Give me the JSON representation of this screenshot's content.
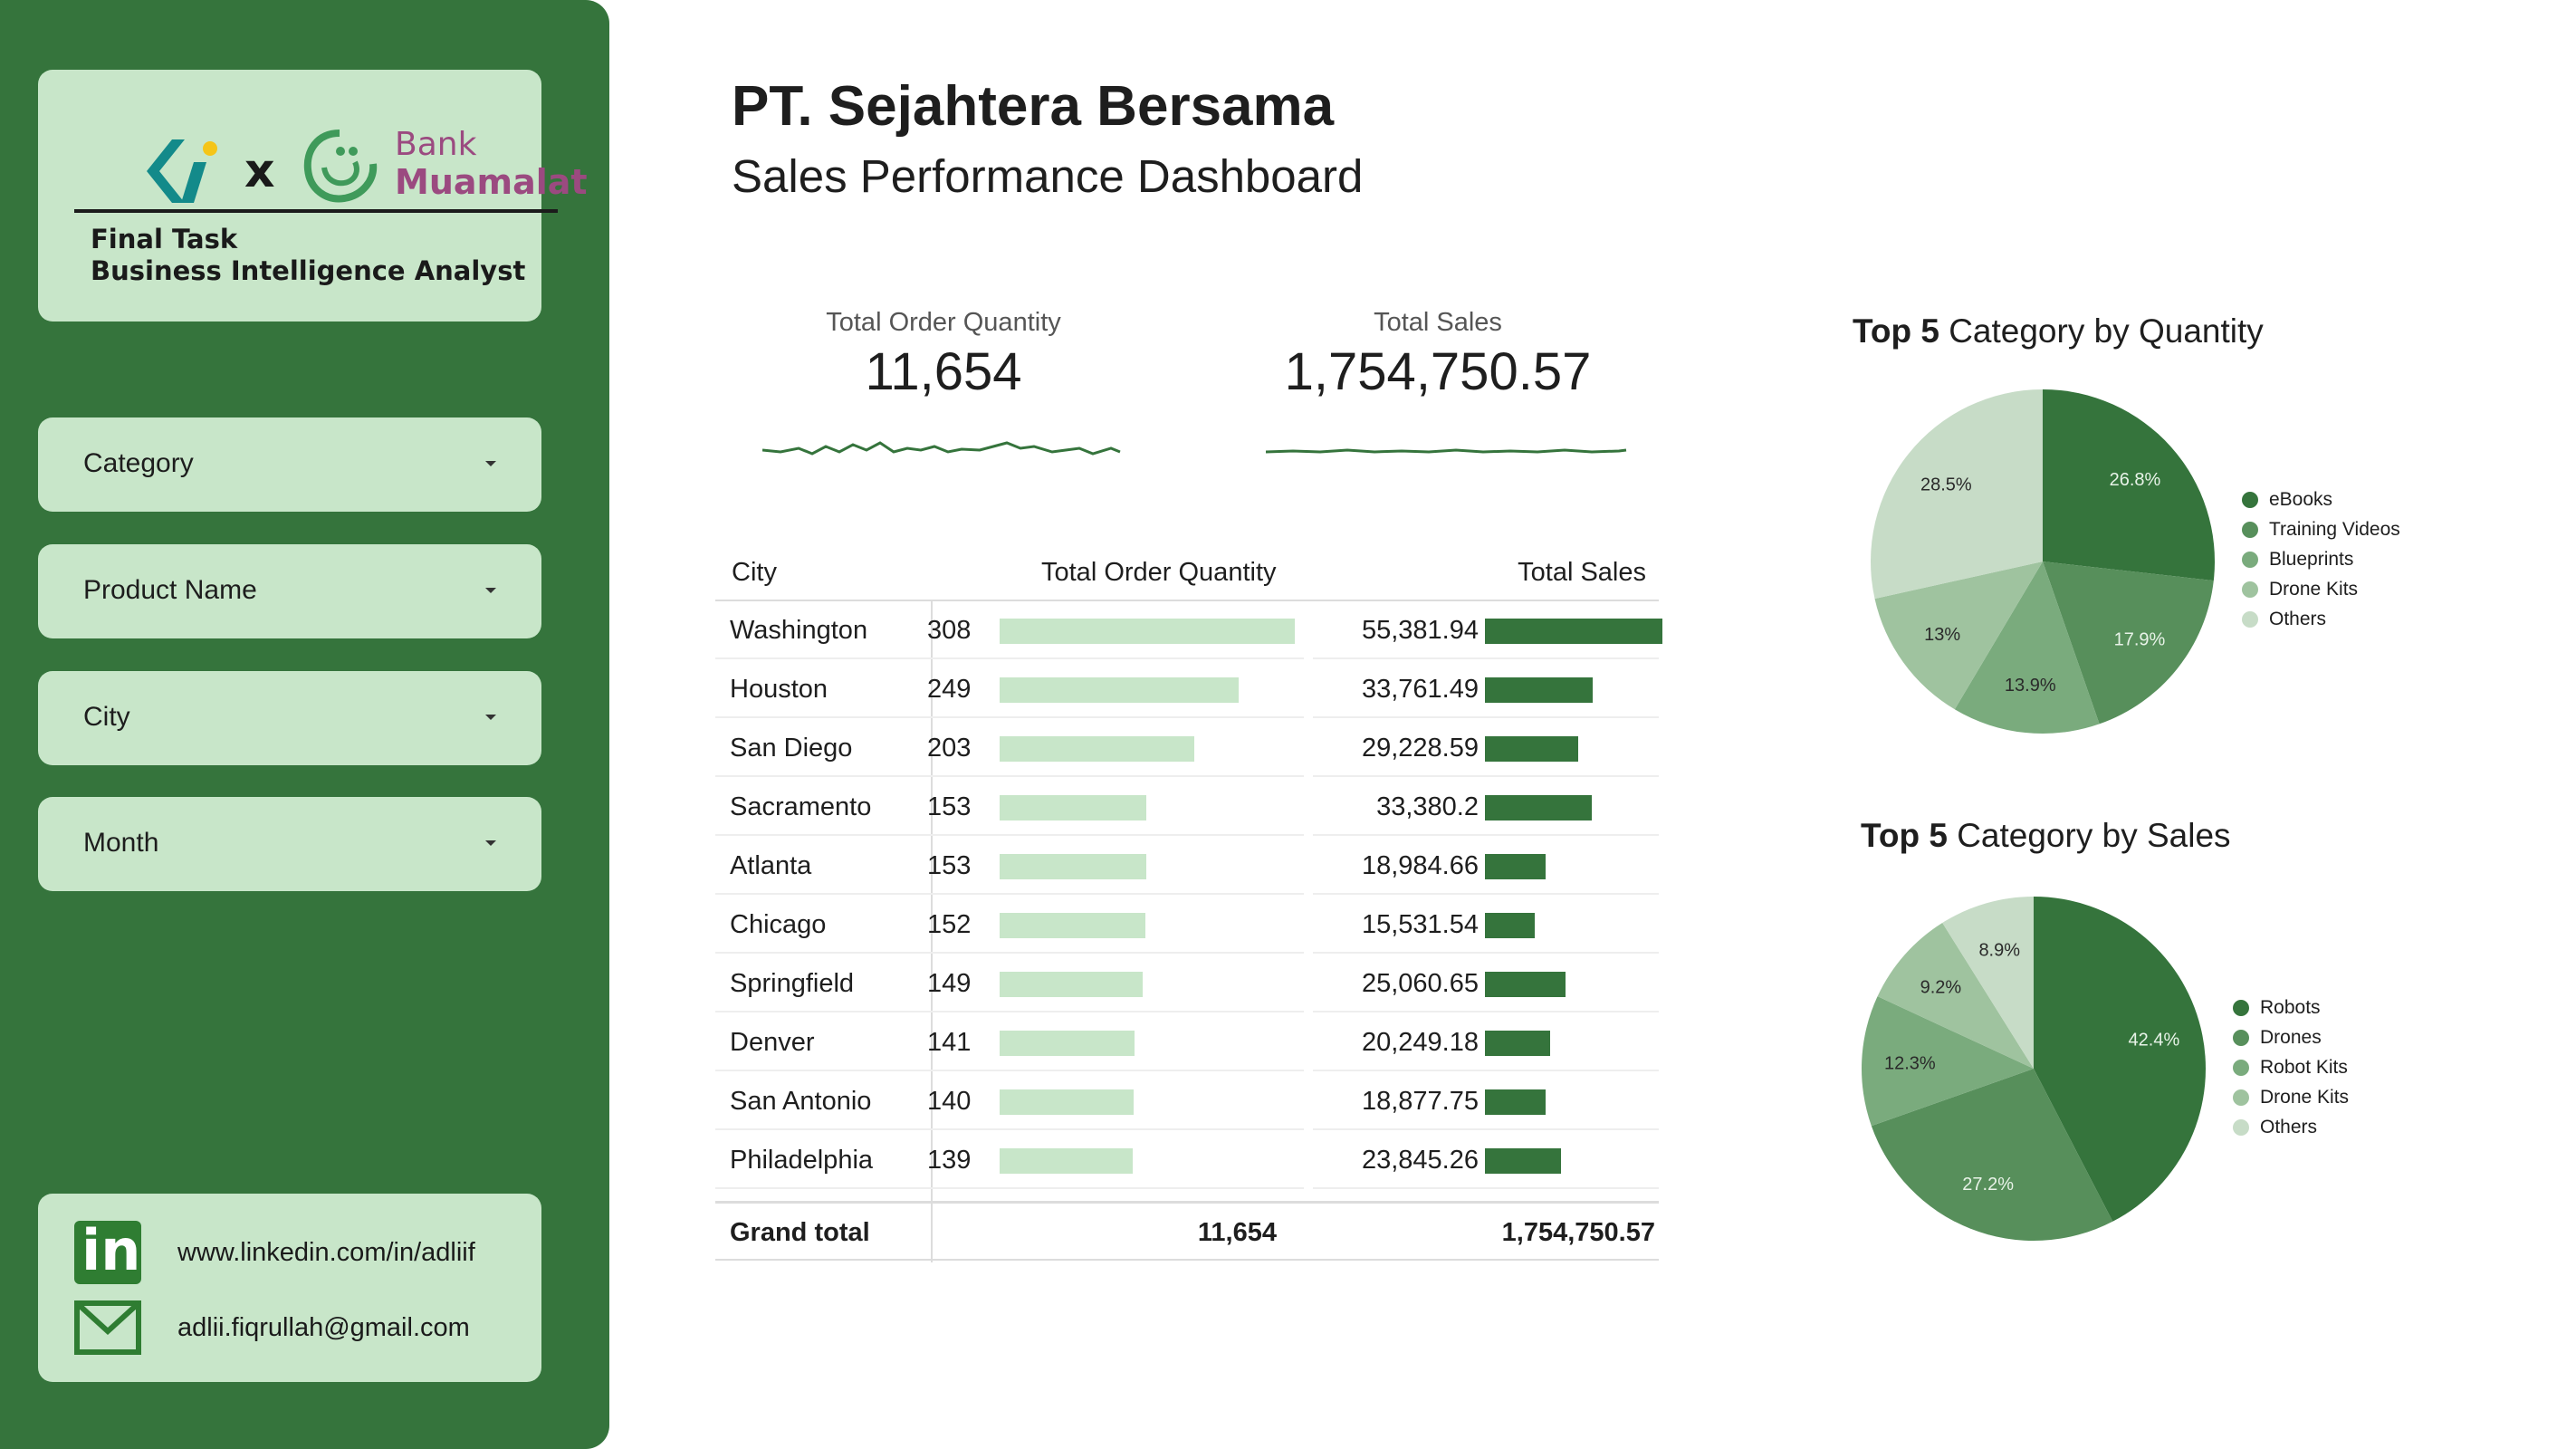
{
  "sidebar": {
    "logo": {
      "x": "x",
      "bank": "Bank",
      "muamalat": "Muamalat"
    },
    "task_line1": "Final Task",
    "task_line2": "Business Intelligence Analyst",
    "filters": [
      {
        "label": "Category"
      },
      {
        "label": "Product Name"
      },
      {
        "label": "City"
      },
      {
        "label": "Month"
      }
    ],
    "contact": {
      "linkedin": "www.linkedin.com/in/adliif",
      "email": "adlii.fiqrullah@gmail.com",
      "linkedin_icon": "in"
    }
  },
  "header": {
    "title": "PT. Sejahtera Bersama",
    "subtitle": "Sales Performance Dashboard"
  },
  "kpis": {
    "order_qty_label": "Total Order Quantity",
    "order_qty_value": "11,654",
    "sales_label": "Total Sales",
    "sales_value": "1,754,750.57"
  },
  "table": {
    "headers": {
      "city": "City",
      "qty": "Total Order Quantity",
      "sales": "Total Sales"
    },
    "rows": [
      {
        "city": "Washington",
        "qty": "308",
        "sales": "55,381.94"
      },
      {
        "city": "Houston",
        "qty": "249",
        "sales": "33,761.49"
      },
      {
        "city": "San Diego",
        "qty": "203",
        "sales": "29,228.59"
      },
      {
        "city": "Sacramento",
        "qty": "153",
        "sales": "33,380.2"
      },
      {
        "city": "Atlanta",
        "qty": "153",
        "sales": "18,984.66"
      },
      {
        "city": "Chicago",
        "qty": "152",
        "sales": "15,531.54"
      },
      {
        "city": "Springfield",
        "qty": "149",
        "sales": "25,060.65"
      },
      {
        "city": "Denver",
        "qty": "141",
        "sales": "20,249.18"
      },
      {
        "city": "San Antonio",
        "qty": "140",
        "sales": "18,877.75"
      },
      {
        "city": "Philadelphia",
        "qty": "139",
        "sales": "23,845.26"
      }
    ],
    "total": {
      "label": "Grand total",
      "qty": "11,654",
      "sales": "1,754,750.57"
    }
  },
  "pie1": {
    "title_bold": "Top 5",
    "title_rest": " Category by Quantity",
    "slices": [
      {
        "name": "eBooks",
        "pct": 26.8,
        "label": "26.8%",
        "color": "#35743c"
      },
      {
        "name": "Training Videos",
        "pct": 17.9,
        "label": "17.9%",
        "color": "#578f5b"
      },
      {
        "name": "Blueprints",
        "pct": 13.9,
        "label": "13.9%",
        "color": "#7aab7d"
      },
      {
        "name": "Drone Kits",
        "pct": 13.0,
        "label": "13%",
        "color": "#9fc39f"
      },
      {
        "name": "Others",
        "pct": 28.5,
        "label": "28.5%",
        "color": "#c7dcc7"
      }
    ]
  },
  "pie2": {
    "title_bold": "Top 5",
    "title_rest": " Category by Sales",
    "slices": [
      {
        "name": "Robots",
        "pct": 42.4,
        "label": "42.4%",
        "color": "#35743c"
      },
      {
        "name": "Drones",
        "pct": 27.2,
        "label": "27.2%",
        "color": "#578f5b"
      },
      {
        "name": "Robot Kits",
        "pct": 12.3,
        "label": "12.3%",
        "color": "#7aab7d"
      },
      {
        "name": "Drone Kits",
        "pct": 9.2,
        "label": "9.2%",
        "color": "#9fc39f"
      },
      {
        "name": "Others",
        "pct": 8.9,
        "label": "8.9%",
        "color": "#c7dcc7"
      }
    ]
  },
  "colors": {
    "sidebar": "#35743c",
    "card": "#c8e6c9",
    "qty_bar": "#c8e6c9",
    "sales_bar": "#35743c"
  },
  "chart_data": [
    {
      "type": "pie",
      "title": "Top 5 Category by Quantity",
      "categories": [
        "eBooks",
        "Training Videos",
        "Blueprints",
        "Drone Kits",
        "Others"
      ],
      "values": [
        26.8,
        17.9,
        13.9,
        13.0,
        28.5
      ],
      "legend": "right"
    },
    {
      "type": "pie",
      "title": "Top 5 Category by Sales",
      "categories": [
        "Robots",
        "Drones",
        "Robot Kits",
        "Drone Kits",
        "Others"
      ],
      "values": [
        42.4,
        27.2,
        12.3,
        9.2,
        8.9
      ],
      "legend": "right"
    },
    {
      "type": "table",
      "columns": [
        "City",
        "Total Order Quantity",
        "Total Sales"
      ],
      "rows": [
        [
          "Washington",
          308,
          55381.94
        ],
        [
          "Houston",
          249,
          33761.49
        ],
        [
          "San Diego",
          203,
          29228.59
        ],
        [
          "Sacramento",
          153,
          33380.2
        ],
        [
          "Atlanta",
          153,
          18984.66
        ],
        [
          "Chicago",
          152,
          15531.54
        ],
        [
          "Springfield",
          149,
          25060.65
        ],
        [
          "Denver",
          141,
          20249.18
        ],
        [
          "San Antonio",
          140,
          18877.75
        ],
        [
          "Philadelphia",
          139,
          23845.26
        ]
      ],
      "total": [
        "Grand total",
        11654,
        1754750.57
      ]
    }
  ]
}
